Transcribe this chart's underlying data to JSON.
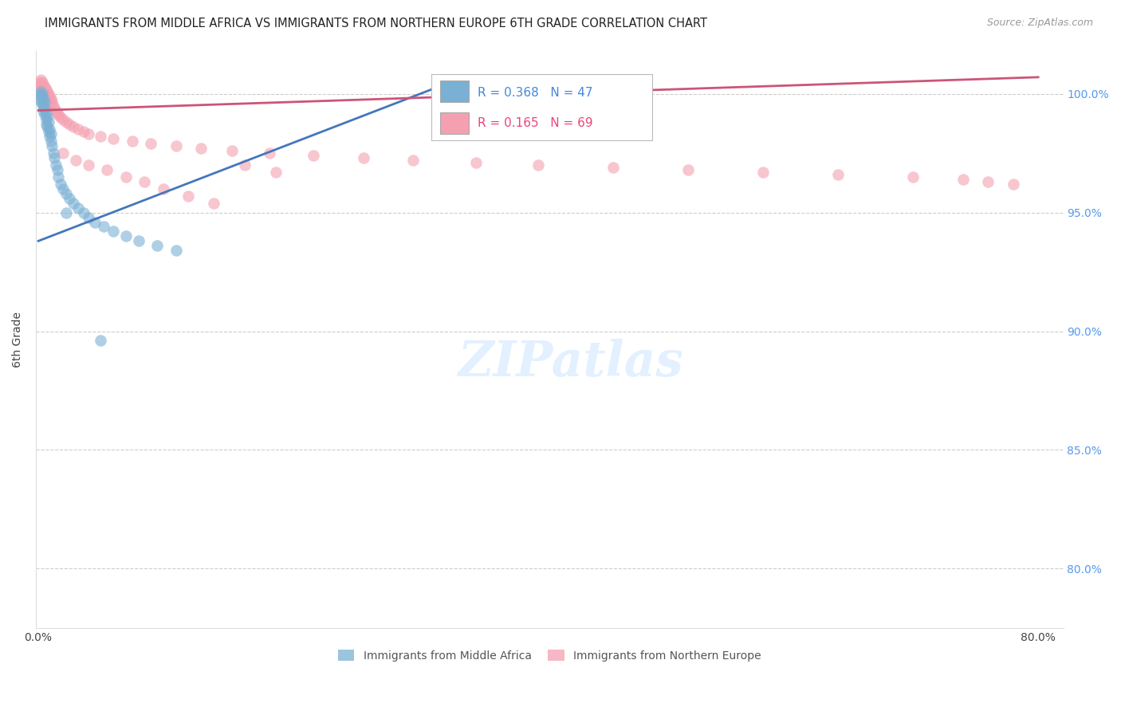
{
  "title": "IMMIGRANTS FROM MIDDLE AFRICA VS IMMIGRANTS FROM NORTHERN EUROPE 6TH GRADE CORRELATION CHART",
  "source": "Source: ZipAtlas.com",
  "ylabel": "6th Grade",
  "ytick_labels": [
    "100.0%",
    "95.0%",
    "90.0%",
    "85.0%",
    "80.0%"
  ],
  "ytick_values": [
    1.0,
    0.95,
    0.9,
    0.85,
    0.8
  ],
  "ymin": 0.775,
  "ymax": 1.018,
  "xmin": -0.002,
  "xmax": 0.82,
  "blue_R": 0.368,
  "blue_N": 47,
  "pink_R": 0.165,
  "pink_N": 69,
  "blue_color": "#7ab0d4",
  "pink_color": "#f4a0b0",
  "blue_line_color": "#4477bb",
  "pink_line_color": "#cc5577",
  "legend_label_blue": "Immigrants from Middle Africa",
  "legend_label_pink": "Immigrants from Northern Europe",
  "blue_line_x": [
    0.0,
    0.34
  ],
  "blue_line_y": [
    0.938,
    1.007
  ],
  "pink_line_x": [
    0.0,
    0.8
  ],
  "pink_line_y": [
    0.993,
    1.007
  ],
  "blue_scatter_x": [
    0.001,
    0.001,
    0.002,
    0.002,
    0.003,
    0.003,
    0.003,
    0.004,
    0.004,
    0.004,
    0.005,
    0.005,
    0.005,
    0.006,
    0.006,
    0.006,
    0.007,
    0.007,
    0.008,
    0.008,
    0.009,
    0.009,
    0.01,
    0.01,
    0.011,
    0.012,
    0.013,
    0.014,
    0.015,
    0.016,
    0.018,
    0.02,
    0.022,
    0.025,
    0.028,
    0.032,
    0.036,
    0.04,
    0.045,
    0.052,
    0.06,
    0.07,
    0.08,
    0.095,
    0.11,
    0.022,
    0.05
  ],
  "blue_scatter_y": [
    1.0,
    0.998,
    1.001,
    0.997,
    1.0,
    0.999,
    0.996,
    0.998,
    0.995,
    0.993,
    0.997,
    0.994,
    0.991,
    0.992,
    0.989,
    0.987,
    0.99,
    0.986,
    0.988,
    0.984,
    0.985,
    0.982,
    0.983,
    0.98,
    0.978,
    0.975,
    0.973,
    0.97,
    0.968,
    0.965,
    0.962,
    0.96,
    0.958,
    0.956,
    0.954,
    0.952,
    0.95,
    0.948,
    0.946,
    0.944,
    0.942,
    0.94,
    0.938,
    0.936,
    0.934,
    0.95,
    0.896
  ],
  "pink_scatter_x": [
    0.001,
    0.001,
    0.002,
    0.002,
    0.003,
    0.003,
    0.003,
    0.004,
    0.004,
    0.005,
    0.005,
    0.005,
    0.006,
    0.006,
    0.007,
    0.007,
    0.007,
    0.008,
    0.008,
    0.009,
    0.009,
    0.01,
    0.01,
    0.011,
    0.012,
    0.013,
    0.014,
    0.015,
    0.016,
    0.018,
    0.02,
    0.022,
    0.025,
    0.028,
    0.032,
    0.036,
    0.04,
    0.05,
    0.06,
    0.075,
    0.09,
    0.11,
    0.13,
    0.155,
    0.185,
    0.22,
    0.26,
    0.3,
    0.35,
    0.4,
    0.46,
    0.52,
    0.58,
    0.64,
    0.7,
    0.74,
    0.76,
    0.78,
    0.02,
    0.03,
    0.04,
    0.055,
    0.07,
    0.085,
    0.1,
    0.12,
    0.14,
    0.165,
    0.19
  ],
  "pink_scatter_y": [
    1.005,
    1.003,
    1.006,
    1.004,
    1.005,
    1.003,
    1.001,
    1.004,
    1.002,
    1.003,
    1.001,
    0.999,
    1.002,
    1.0,
    1.001,
    0.999,
    0.997,
    1.0,
    0.998,
    0.999,
    0.997,
    0.998,
    0.996,
    0.997,
    0.995,
    0.994,
    0.993,
    0.992,
    0.991,
    0.99,
    0.989,
    0.988,
    0.987,
    0.986,
    0.985,
    0.984,
    0.983,
    0.982,
    0.981,
    0.98,
    0.979,
    0.978,
    0.977,
    0.976,
    0.975,
    0.974,
    0.973,
    0.972,
    0.971,
    0.97,
    0.969,
    0.968,
    0.967,
    0.966,
    0.965,
    0.964,
    0.963,
    0.962,
    0.975,
    0.972,
    0.97,
    0.968,
    0.965,
    0.963,
    0.96,
    0.957,
    0.954,
    0.97,
    0.967
  ]
}
